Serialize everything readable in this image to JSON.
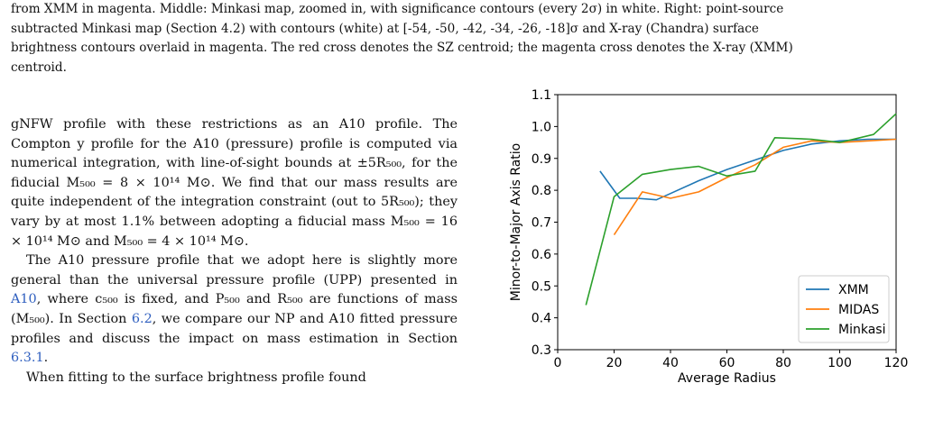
{
  "caption": {
    "line1": "from XMM in magenta. Middle: Minkasi map, zoomed in, with significance contours (every 2σ) in white. Right: point-source",
    "line2": "subtracted Minkasi map (Section 4.2) with contours (white) at [-54, -50, -42, -34, -26, -18]σ and X-ray (Chandra) surface",
    "line3": "brightness contours overlaid in magenta. The red cross denotes the SZ centroid; the magenta cross denotes the X-ray (XMM)",
    "line4": "centroid."
  },
  "body": {
    "para1": "gNFW profile with these restrictions as an A10 profile. The Compton y profile for the A10 (pressure) profile is computed via numerical integration, with line-of-sight bounds at ±5R₅₀₀, for the fiducial M₅₀₀ = 8 × 10¹⁴ M⊙. We find that our mass results are quite independent of the integration constraint (out to 5R₅₀₀); they vary by at most 1.1% between adopting a fiducial mass M₅₀₀ = 16 × 10¹⁴ M⊙ and M₅₀₀ = 4 × 10¹⁴ M⊙.",
    "para2_a": "The A10 pressure profile that we adopt here is slightly more general than the universal pressure profile (UPP) presented in ",
    "para2_link1": "A10",
    "para2_b": ", where c₅₀₀ is fixed, and P₅₀₀ and R₅₀₀ are functions of mass (M₅₀₀). In Section ",
    "para2_link2": "6.2",
    "para2_c": ", we compare our NP and A10 fitted pressure profiles and discuss the impact on mass estimation in Section ",
    "para2_link3": "6.3.1",
    "para2_d": ".",
    "para3": "When fitting to the surface brightness profile found"
  },
  "chart_data": {
    "type": "line",
    "title": "",
    "xlabel": "Average Radius",
    "ylabel": "Minor-to-Major Axis Ratio",
    "xlim": [
      0,
      120
    ],
    "ylim": [
      0.3,
      1.1
    ],
    "xticks": [
      0,
      20,
      40,
      60,
      80,
      100,
      120
    ],
    "yticks": [
      0.3,
      0.4,
      0.5,
      0.6,
      0.7,
      0.8,
      0.9,
      1.0,
      1.1
    ],
    "grid": false,
    "legend": "lower-right",
    "series": [
      {
        "name": "XMM",
        "color": "#1f77b4",
        "x": [
          15,
          22,
          28,
          35,
          40,
          50,
          60,
          70,
          80,
          90,
          100,
          110,
          120
        ],
        "y": [
          0.86,
          0.775,
          0.775,
          0.77,
          0.79,
          0.83,
          0.865,
          0.895,
          0.925,
          0.945,
          0.955,
          0.96,
          0.96
        ]
      },
      {
        "name": "MIDAS",
        "color": "#ff7f0e",
        "x": [
          20,
          30,
          35,
          40,
          50,
          60,
          70,
          80,
          90,
          100,
          110,
          120
        ],
        "y": [
          0.66,
          0.795,
          0.785,
          0.775,
          0.795,
          0.84,
          0.88,
          0.935,
          0.955,
          0.95,
          0.955,
          0.96
        ]
      },
      {
        "name": "Minkasi",
        "color": "#2ca02c",
        "x": [
          10,
          20,
          30,
          40,
          50,
          60,
          70,
          77,
          90,
          100,
          112,
          120
        ],
        "y": [
          0.44,
          0.78,
          0.85,
          0.865,
          0.875,
          0.845,
          0.86,
          0.965,
          0.96,
          0.95,
          0.975,
          1.04
        ]
      }
    ]
  }
}
